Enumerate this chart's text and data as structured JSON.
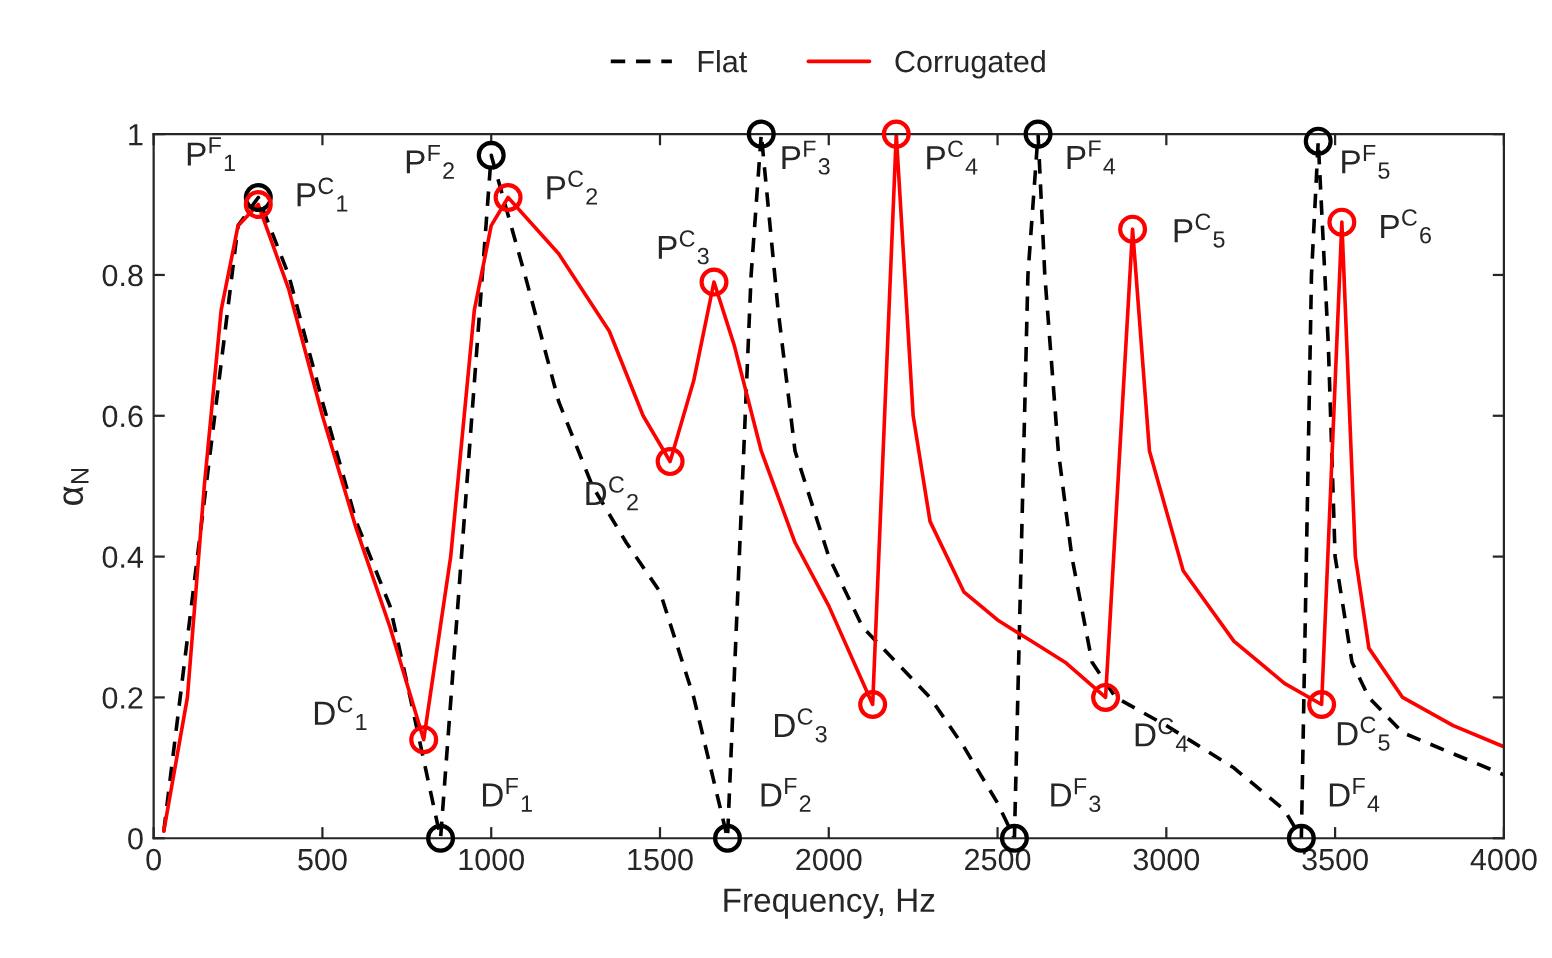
{
  "chart_data": {
    "type": "line",
    "xlabel": "Frequency, Hz",
    "ylabel": "α$_{N}$",
    "xlim": [
      0,
      4000
    ],
    "xticks": [
      0,
      500,
      1000,
      1500,
      2000,
      2500,
      3000,
      3500,
      4000
    ],
    "ylim": [
      0,
      1
    ],
    "yticks": [
      0,
      0.2,
      0.4,
      0.6,
      0.8,
      1
    ],
    "grid": false,
    "legend": "top",
    "series": [
      {
        "name": "Flat",
        "line_style": "dashed",
        "color": "#000000",
        "x": [
          30,
          100,
          150,
          200,
          250,
          310,
          400,
          500,
          600,
          700,
          760,
          850,
          1000,
          1100,
          1200,
          1300,
          1400,
          1500,
          1600,
          1700,
          1770,
          1800,
          1850,
          1900,
          2000,
          2100,
          2200,
          2300,
          2400,
          2500,
          2550,
          2590,
          2620,
          2640,
          2680,
          2720,
          2780,
          2850,
          3000,
          3200,
          3350,
          3400,
          3430,
          3450,
          3480,
          3500,
          3550,
          3600,
          3700,
          3850,
          4000
        ],
        "values": [
          0.01,
          null,
          null,
          null,
          0.87,
          0.91,
          0.8,
          0.62,
          0.45,
          0.33,
          0.2,
          0,
          0.97,
          0.8,
          0.62,
          0.5,
          0.42,
          0.35,
          0.2,
          0,
          0.8,
          1.0,
          0.75,
          0.55,
          0.4,
          0.3,
          0.25,
          0.2,
          0.13,
          0.05,
          0,
          0.8,
          1.0,
          0.8,
          0.55,
          0.4,
          0.25,
          0.2,
          0.16,
          0.1,
          0.04,
          0,
          0.8,
          0.99,
          0.7,
          0.4,
          0.25,
          0.2,
          0.15,
          0.12,
          0.09
        ]
      },
      {
        "name": "Corrugated",
        "line_style": "solid",
        "color": "#ff0000",
        "x": [
          30,
          100,
          150,
          200,
          250,
          310,
          400,
          500,
          600,
          700,
          800,
          880,
          950,
          1000,
          1050,
          1200,
          1350,
          1450,
          1530,
          1600,
          1660,
          1720,
          1800,
          1900,
          2000,
          2130,
          2200,
          2250,
          2300,
          2400,
          2500,
          2600,
          2700,
          2820,
          2900,
          2950,
          3050,
          3200,
          3350,
          3460,
          3520,
          3560,
          3600,
          3700,
          3850,
          4000
        ],
        "values": [
          0.01,
          0.2,
          0.5,
          0.75,
          0.87,
          0.9,
          0.78,
          0.6,
          0.44,
          0.3,
          0.14,
          0.4,
          0.75,
          0.87,
          0.91,
          0.83,
          0.72,
          0.6,
          0.535,
          0.65,
          0.79,
          0.7,
          0.55,
          0.42,
          0.33,
          0.19,
          1.0,
          0.6,
          0.45,
          0.35,
          0.31,
          0.28,
          0.25,
          0.2,
          0.865,
          0.55,
          0.38,
          0.28,
          0.22,
          0.19,
          0.875,
          0.4,
          0.27,
          0.2,
          0.16,
          0.13
        ]
      },
      {
        "type": "scatter",
        "marker": "circle",
        "color": "#000000",
        "x": [
          310,
          850,
          1000,
          1700,
          1800,
          2550,
          2620,
          3400,
          3450
        ],
        "values": [
          0.91,
          0,
          0.97,
          0,
          1.0,
          0,
          1.0,
          0,
          0.99
        ]
      },
      {
        "type": "scatter",
        "marker": "circle",
        "color": "#ff0000",
        "x": [
          310,
          800,
          1050,
          1530,
          1660,
          2130,
          2200,
          2820,
          2900,
          3460,
          3520
        ],
        "values": [
          0.9,
          0.14,
          0.91,
          0.535,
          0.79,
          0.19,
          1.0,
          0.2,
          0.865,
          0.19,
          0.875
        ]
      }
    ],
    "annotations": [
      {
        "text": "P$^{F}$$_{1}$",
        "x": 310,
        "y": 0.91
      },
      {
        "text": "P$^{C}$$_{1}$",
        "x": 310,
        "y": 0.9
      },
      {
        "text": "D$^{C}$$_{1}$",
        "x": 800,
        "y": 0.14
      },
      {
        "text": "D$^{F}$$_{1}$",
        "x": 850,
        "y": 0
      },
      {
        "text": "P$^{F}$$_{2}$",
        "x": 1000,
        "y": 0.97
      },
      {
        "text": "P$^{C}$$_{2}$",
        "x": 1050,
        "y": 0.91
      },
      {
        "text": "D$^{C}$$_{2}$",
        "x": 1530,
        "y": 0.535
      },
      {
        "text": "P$^{C}$$_{3}$",
        "x": 1660,
        "y": 0.79
      },
      {
        "text": "D$^{F}$$_{2}$",
        "x": 1700,
        "y": 0
      },
      {
        "text": "P$^{F}$$_{3}$",
        "x": 1800,
        "y": 1.0
      },
      {
        "text": "D$^{C}$$_{3}$",
        "x": 2130,
        "y": 0.19
      },
      {
        "text": "P$^{C}$$_{4}$",
        "x": 2200,
        "y": 1.0
      },
      {
        "text": "D$^{F}$$_{3}$",
        "x": 2550,
        "y": 0
      },
      {
        "text": "P$^{F}$$_{4}$",
        "x": 2620,
        "y": 1.0
      },
      {
        "text": "D$^{C}$$_{4}$",
        "x": 2820,
        "y": 0.2
      },
      {
        "text": "P$^{C}$$_{5}$",
        "x": 2900,
        "y": 0.865
      },
      {
        "text": "D$^{F}$$_{4}$",
        "x": 3400,
        "y": 0
      },
      {
        "text": "P$^{F}$$_{5}$",
        "x": 3450,
        "y": 0.99
      },
      {
        "text": "D$^{C}$$_{5}$",
        "x": 3460,
        "y": 0.19
      },
      {
        "text": "P$^{C}$$_{6}$",
        "x": 3520,
        "y": 0.875
      }
    ]
  }
}
